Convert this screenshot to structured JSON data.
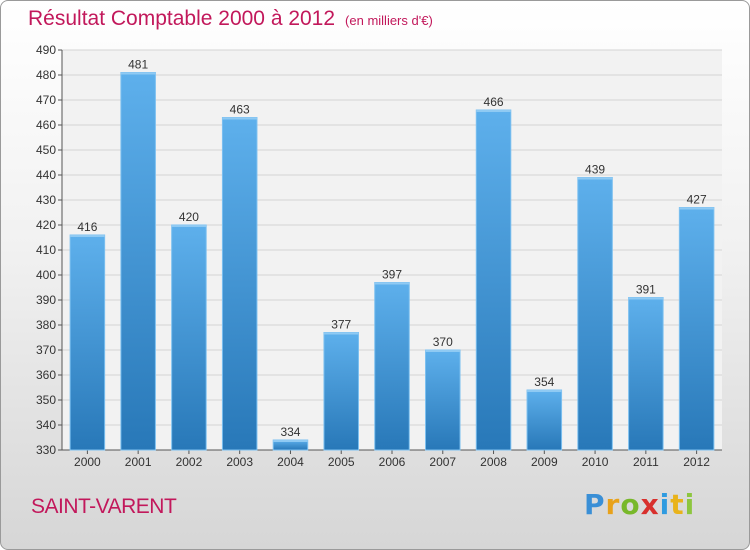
{
  "header": {
    "title": "Résultat Comptable 2000 à 2012",
    "unit": "(en milliers d'€)"
  },
  "location": "SAINT-VARENT",
  "logo": {
    "letters": [
      "P",
      "r",
      "o",
      "x",
      "i",
      "t",
      "i"
    ],
    "colors": [
      "#3a8fd6",
      "#e8a21b",
      "#78b82a",
      "#d8302d",
      "#2f9be0",
      "#e9b31b",
      "#8dc63f"
    ]
  },
  "chart_data": {
    "type": "bar",
    "categories": [
      "2000",
      "2001",
      "2002",
      "2003",
      "2004",
      "2005",
      "2006",
      "2007",
      "2008",
      "2009",
      "2010",
      "2011",
      "2012"
    ],
    "values": [
      416,
      481,
      420,
      463,
      334,
      377,
      397,
      370,
      466,
      354,
      439,
      391,
      427
    ],
    "ylim": [
      330,
      490
    ],
    "yticks": [
      330,
      340,
      350,
      360,
      370,
      380,
      390,
      400,
      410,
      420,
      430,
      440,
      450,
      460,
      470,
      480,
      490
    ],
    "grid": true,
    "bar_color": "#3d97dc"
  }
}
